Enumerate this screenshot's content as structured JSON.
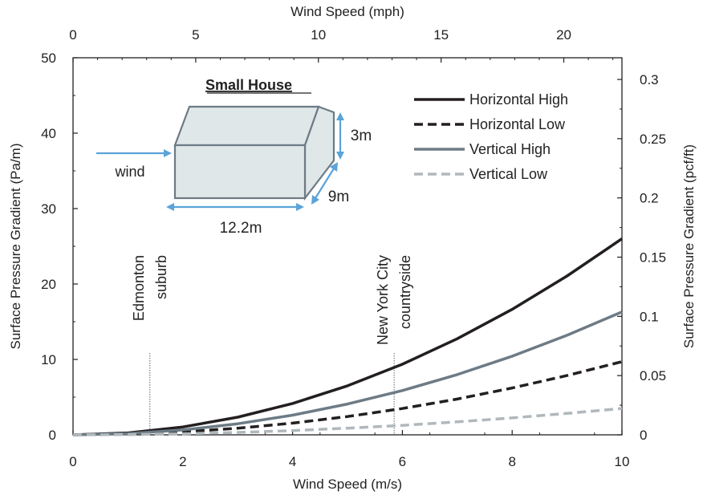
{
  "chart_data": {
    "type": "line",
    "xlabel": "Wind Speed (m/s)",
    "x2label": "Wind Speed (mph)",
    "ylabel": "Surface Pressure Gradient (Pa/m)",
    "y2label": "Surface Pressure Gradient (pcf/ft)",
    "xlim": [
      0,
      10
    ],
    "ylim": [
      0,
      50
    ],
    "x2lim": [
      0,
      22.37
    ],
    "y2lim": [
      0,
      0.3183
    ],
    "xticks": [
      "0",
      "2",
      "4",
      "6",
      "8",
      "10"
    ],
    "yticks": [
      "0",
      "10",
      "20",
      "30",
      "40",
      "50"
    ],
    "x2ticks": [
      "0",
      "5",
      "10",
      "15",
      "20"
    ],
    "y2ticks": [
      "0",
      "0.05",
      "0.1",
      "0.15",
      "0.2",
      "0.25",
      "0.3"
    ],
    "series": [
      {
        "name": "Horizontal High",
        "color": "#231f20",
        "dash": "solid",
        "x": [
          0,
          1,
          2,
          3,
          4,
          5,
          6,
          7,
          8,
          9,
          10
        ],
        "y": [
          0,
          0.26,
          1.04,
          2.34,
          4.16,
          6.5,
          9.36,
          12.74,
          16.64,
          21.06,
          26.0
        ]
      },
      {
        "name": "Horizontal Low",
        "color": "#231f20",
        "dash": "dashed",
        "x": [
          0,
          1,
          2,
          3,
          4,
          5,
          6,
          7,
          8,
          9,
          10
        ],
        "y": [
          0,
          0.097,
          0.39,
          0.87,
          1.55,
          2.43,
          3.49,
          4.75,
          6.21,
          7.86,
          9.7
        ]
      },
      {
        "name": "Vertical High",
        "color": "#6d7b86",
        "dash": "solid",
        "x": [
          0,
          1,
          2,
          3,
          4,
          5,
          6,
          7,
          8,
          9,
          10
        ],
        "y": [
          0,
          0.163,
          0.65,
          1.47,
          2.61,
          4.08,
          5.87,
          7.99,
          10.43,
          13.2,
          16.3
        ]
      },
      {
        "name": "Vertical Low",
        "color": "#b0b8bb",
        "dash": "dashed",
        "x": [
          0,
          1,
          2,
          3,
          4,
          5,
          6,
          7,
          8,
          9,
          10
        ],
        "y": [
          0,
          0.035,
          0.14,
          0.32,
          0.56,
          0.88,
          1.26,
          1.72,
          2.24,
          2.84,
          3.5
        ]
      }
    ],
    "markers": [
      {
        "x": 1.4,
        "labels": [
          "Edmonton",
          "suburb"
        ]
      },
      {
        "x": 5.85,
        "labels": [
          "New York City",
          "countryside"
        ]
      }
    ],
    "legend_position": "top-right",
    "inset": {
      "title": "Small House",
      "wind_label": "wind",
      "dim_height": "3m",
      "dim_depth": "9m",
      "dim_length": "12.2m"
    }
  }
}
